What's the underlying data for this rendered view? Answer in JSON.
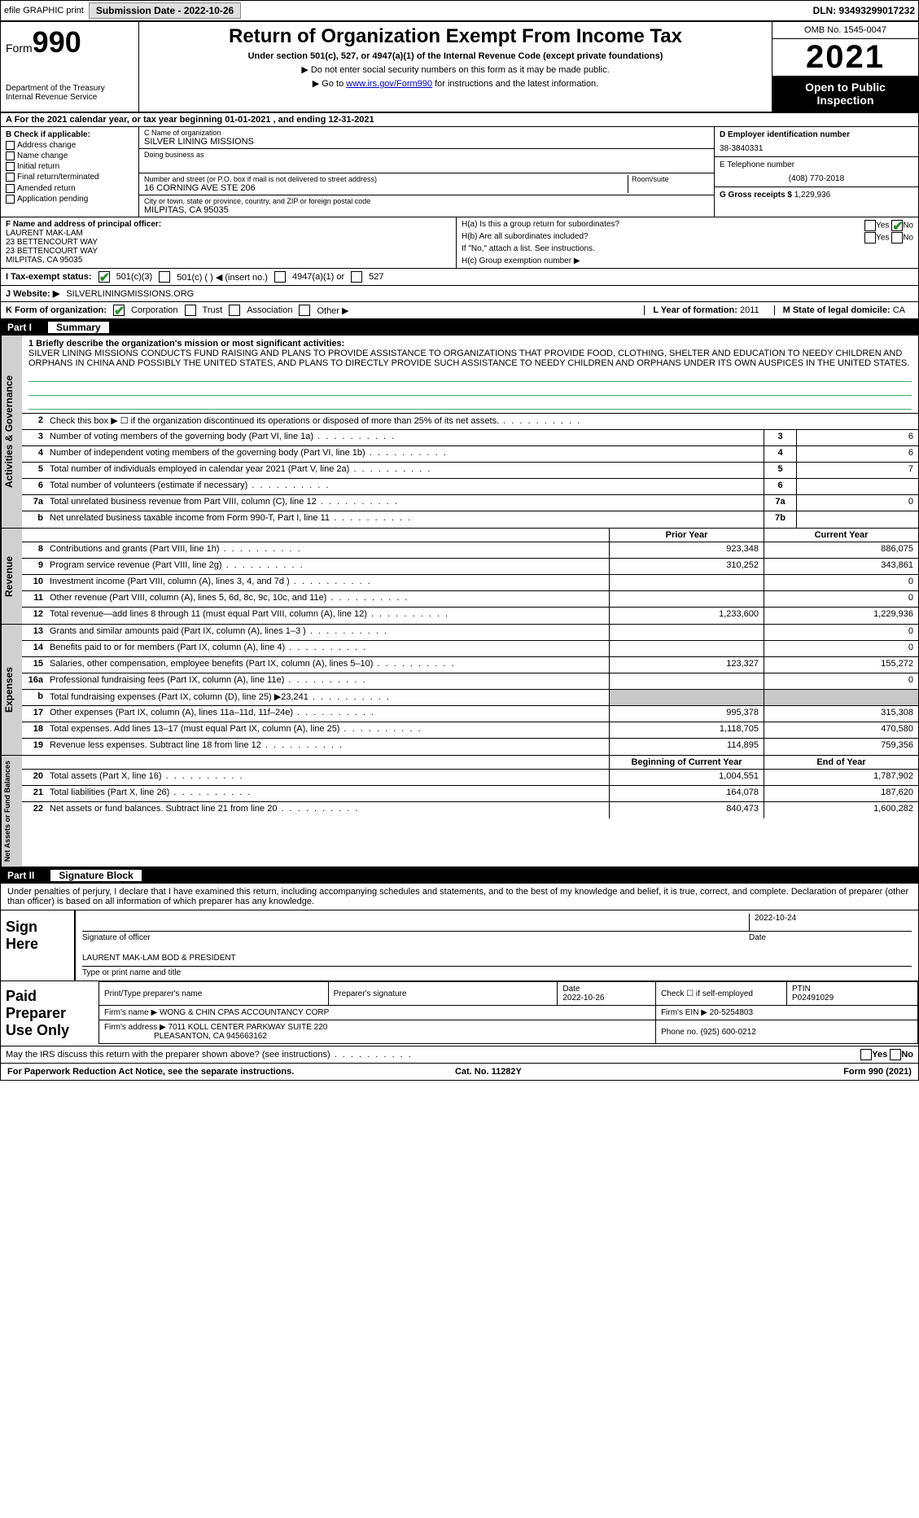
{
  "topbar": {
    "efile": "efile GRAPHIC print",
    "submit_btn": "Submission Date - 2022-10-26",
    "dln": "DLN: 93493299017232"
  },
  "header": {
    "form_word": "Form",
    "form_num": "990",
    "dept": "Department of the Treasury\nInternal Revenue Service",
    "title": "Return of Organization Exempt From Income Tax",
    "sub": "Under section 501(c), 527, or 4947(a)(1) of the Internal Revenue Code (except private foundations)",
    "note1": "▶ Do not enter social security numbers on this form as it may be made public.",
    "note2_pre": "▶ Go to ",
    "note2_link": "www.irs.gov/Form990",
    "note2_post": " for instructions and the latest information.",
    "omb": "OMB No. 1545-0047",
    "year": "2021",
    "open_pub": "Open to Public Inspection"
  },
  "line_a": "A For the 2021 calendar year, or tax year beginning 01-01-2021     , and ending 12-31-2021",
  "box_b": {
    "hdr": "B Check if applicable:",
    "opts": [
      "Address change",
      "Name change",
      "Initial return",
      "Final return/terminated",
      "Amended return",
      "Application pending"
    ]
  },
  "box_c": {
    "name_lbl": "C Name of organization",
    "name": "SILVER LINING MISSIONS",
    "dba_lbl": "Doing business as",
    "dba": "",
    "addr_lbl": "Number and street (or P.O. box if mail is not delivered to street address)",
    "room_lbl": "Room/suite",
    "addr": "16 CORNING AVE STE 206",
    "city_lbl": "City or town, state or province, country, and ZIP or foreign postal code",
    "city": "MILPITAS, CA  95035"
  },
  "box_d": {
    "ein_lbl": "D Employer identification number",
    "ein": "38-3840331",
    "tel_lbl": "E Telephone number",
    "tel": "(408) 770-2018",
    "gross_lbl": "G Gross receipts $",
    "gross": "1,229,936"
  },
  "box_f": {
    "lbl": "F  Name and address of principal officer:",
    "name": "LAURENT MAK-LAM",
    "l1": "23 BETTENCOURT WAY",
    "l2": "23 BETTENCOURT WAY",
    "l3": "MILPITAS, CA  95035"
  },
  "box_h": {
    "a": "H(a)  Is this a group return for subordinates?",
    "b": "H(b)  Are all subordinates included?",
    "note": "If \"No,\" attach a list. See instructions.",
    "c": "H(c)  Group exemption number ▶"
  },
  "row_i": {
    "lbl": "I    Tax-exempt status:",
    "o1": "501(c)(3)",
    "o2": "501(c) (  ) ◀ (insert no.)",
    "o3": "4947(a)(1) or",
    "o4": "527"
  },
  "row_j": {
    "lbl": "J   Website: ▶",
    "val": "SILVERLININGMISSIONS.ORG"
  },
  "row_k": {
    "lbl": "K Form of organization:",
    "opts": [
      "Corporation",
      "Trust",
      "Association",
      "Other ▶"
    ],
    "l_lbl": "L Year of formation:",
    "l_val": "2011",
    "m_lbl": "M State of legal domicile:",
    "m_val": "CA"
  },
  "part1": {
    "p": "Part I",
    "t": "Summary"
  },
  "mission": {
    "lbl": "1  Briefly describe the organization's mission or most significant activities:",
    "text": "SILVER LINING MISSIONS CONDUCTS FUND RAISING AND PLANS TO PROVIDE ASSISTANCE TO ORGANIZATIONS THAT PROVIDE FOOD, CLOTHING, SHELTER AND EDUCATION TO NEEDY CHILDREN AND ORPHANS IN CHINA AND POSSIBLY THE UNITED STATES, AND PLANS TO DIRECTLY PROVIDE SUCH ASSISTANCE TO NEEDY CHILDREN AND ORPHANS UNDER ITS OWN AUSPICES IN THE UNITED STATES."
  },
  "gov_rows": [
    {
      "n": "2",
      "t": "Check this box ▶ ☐  if the organization discontinued its operations or disposed of more than 25% of its net assets."
    },
    {
      "n": "3",
      "t": "Number of voting members of the governing body (Part VI, line 1a)",
      "box": "3",
      "v": "6"
    },
    {
      "n": "4",
      "t": "Number of independent voting members of the governing body (Part VI, line 1b)",
      "box": "4",
      "v": "6"
    },
    {
      "n": "5",
      "t": "Total number of individuals employed in calendar year 2021 (Part V, line 2a)",
      "box": "5",
      "v": "7"
    },
    {
      "n": "6",
      "t": "Total number of volunteers (estimate if necessary)",
      "box": "6",
      "v": ""
    },
    {
      "n": "7a",
      "t": "Total unrelated business revenue from Part VIII, column (C), line 12",
      "box": "7a",
      "v": "0"
    },
    {
      "n": "b",
      "t": "Net unrelated business taxable income from Form 990-T, Part I, line 11",
      "box": "7b",
      "v": ""
    }
  ],
  "col_hdrs": {
    "prior": "Prior Year",
    "current": "Current Year"
  },
  "rev_rows": [
    {
      "n": "8",
      "t": "Contributions and grants (Part VIII, line 1h)",
      "p": "923,348",
      "c": "886,075"
    },
    {
      "n": "9",
      "t": "Program service revenue (Part VIII, line 2g)",
      "p": "310,252",
      "c": "343,861"
    },
    {
      "n": "10",
      "t": "Investment income (Part VIII, column (A), lines 3, 4, and 7d )",
      "p": "",
      "c": "0"
    },
    {
      "n": "11",
      "t": "Other revenue (Part VIII, column (A), lines 5, 6d, 8c, 9c, 10c, and 11e)",
      "p": "",
      "c": "0"
    },
    {
      "n": "12",
      "t": "Total revenue—add lines 8 through 11 (must equal Part VIII, column (A), line 12)",
      "p": "1,233,600",
      "c": "1,229,936"
    }
  ],
  "exp_rows": [
    {
      "n": "13",
      "t": "Grants and similar amounts paid (Part IX, column (A), lines 1–3 )",
      "p": "",
      "c": "0"
    },
    {
      "n": "14",
      "t": "Benefits paid to or for members (Part IX, column (A), line 4)",
      "p": "",
      "c": "0"
    },
    {
      "n": "15",
      "t": "Salaries, other compensation, employee benefits (Part IX, column (A), lines 5–10)",
      "p": "123,327",
      "c": "155,272"
    },
    {
      "n": "16a",
      "t": "Professional fundraising fees (Part IX, column (A), line 11e)",
      "p": "",
      "c": "0"
    },
    {
      "n": "b",
      "t": "Total fundraising expenses (Part IX, column (D), line 25) ▶23,241",
      "p": "shade",
      "c": "shade"
    },
    {
      "n": "17",
      "t": "Other expenses (Part IX, column (A), lines 11a–11d, 11f–24e)",
      "p": "995,378",
      "c": "315,308"
    },
    {
      "n": "18",
      "t": "Total expenses. Add lines 13–17 (must equal Part IX, column (A), line 25)",
      "p": "1,118,705",
      "c": "470,580"
    },
    {
      "n": "19",
      "t": "Revenue less expenses. Subtract line 18 from line 12",
      "p": "114,895",
      "c": "759,356"
    }
  ],
  "na_hdrs": {
    "beg": "Beginning of Current Year",
    "end": "End of Year"
  },
  "na_rows": [
    {
      "n": "20",
      "t": "Total assets (Part X, line 16)",
      "p": "1,004,551",
      "c": "1,787,902"
    },
    {
      "n": "21",
      "t": "Total liabilities (Part X, line 26)",
      "p": "164,078",
      "c": "187,620"
    },
    {
      "n": "22",
      "t": "Net assets or fund balances. Subtract line 21 from line 20",
      "p": "840,473",
      "c": "1,600,282"
    }
  ],
  "side_labels": {
    "gov": "Activities & Governance",
    "rev": "Revenue",
    "exp": "Expenses",
    "na": "Net Assets or Fund Balances"
  },
  "part2": {
    "p": "Part II",
    "t": "Signature Block"
  },
  "sig": {
    "penalty": "Under penalties of perjury, I declare that I have examined this return, including accompanying schedules and statements, and to the best of my knowledge and belief, it is true, correct, and complete. Declaration of preparer (other than officer) is based on all information of which preparer has any knowledge.",
    "sign_here": "Sign Here",
    "sig_officer": "Signature of officer",
    "date": "Date",
    "date_val": "2022-10-24",
    "name_title": "LAURENT MAK-LAM BOD & PRESIDENT",
    "type_name": "Type or print name and title"
  },
  "prep": {
    "lbl": "Paid Preparer Use Only",
    "h1": "Print/Type preparer's name",
    "h2": "Preparer's signature",
    "h3": "Date",
    "h3v": "2022-10-26",
    "h4": "Check ☐ if self-employed",
    "h5": "PTIN",
    "h5v": "P02491029",
    "firm_lbl": "Firm's name    ▶",
    "firm": "WONG & CHIN CPAS ACCOUNTANCY CORP",
    "ein_lbl": "Firm's EIN ▶",
    "ein": "20-5254803",
    "addr_lbl": "Firm's address ▶",
    "addr1": "7011 KOLL CENTER PARKWAY SUITE 220",
    "addr2": "PLEASANTON, CA  945663162",
    "phone_lbl": "Phone no.",
    "phone": "(925) 600-0212"
  },
  "discuss": "May the IRS discuss this return with the preparer shown above? (see instructions)",
  "footer": {
    "l": "For Paperwork Reduction Act Notice, see the separate instructions.",
    "m": "Cat. No. 11282Y",
    "r": "Form 990 (2021)"
  }
}
